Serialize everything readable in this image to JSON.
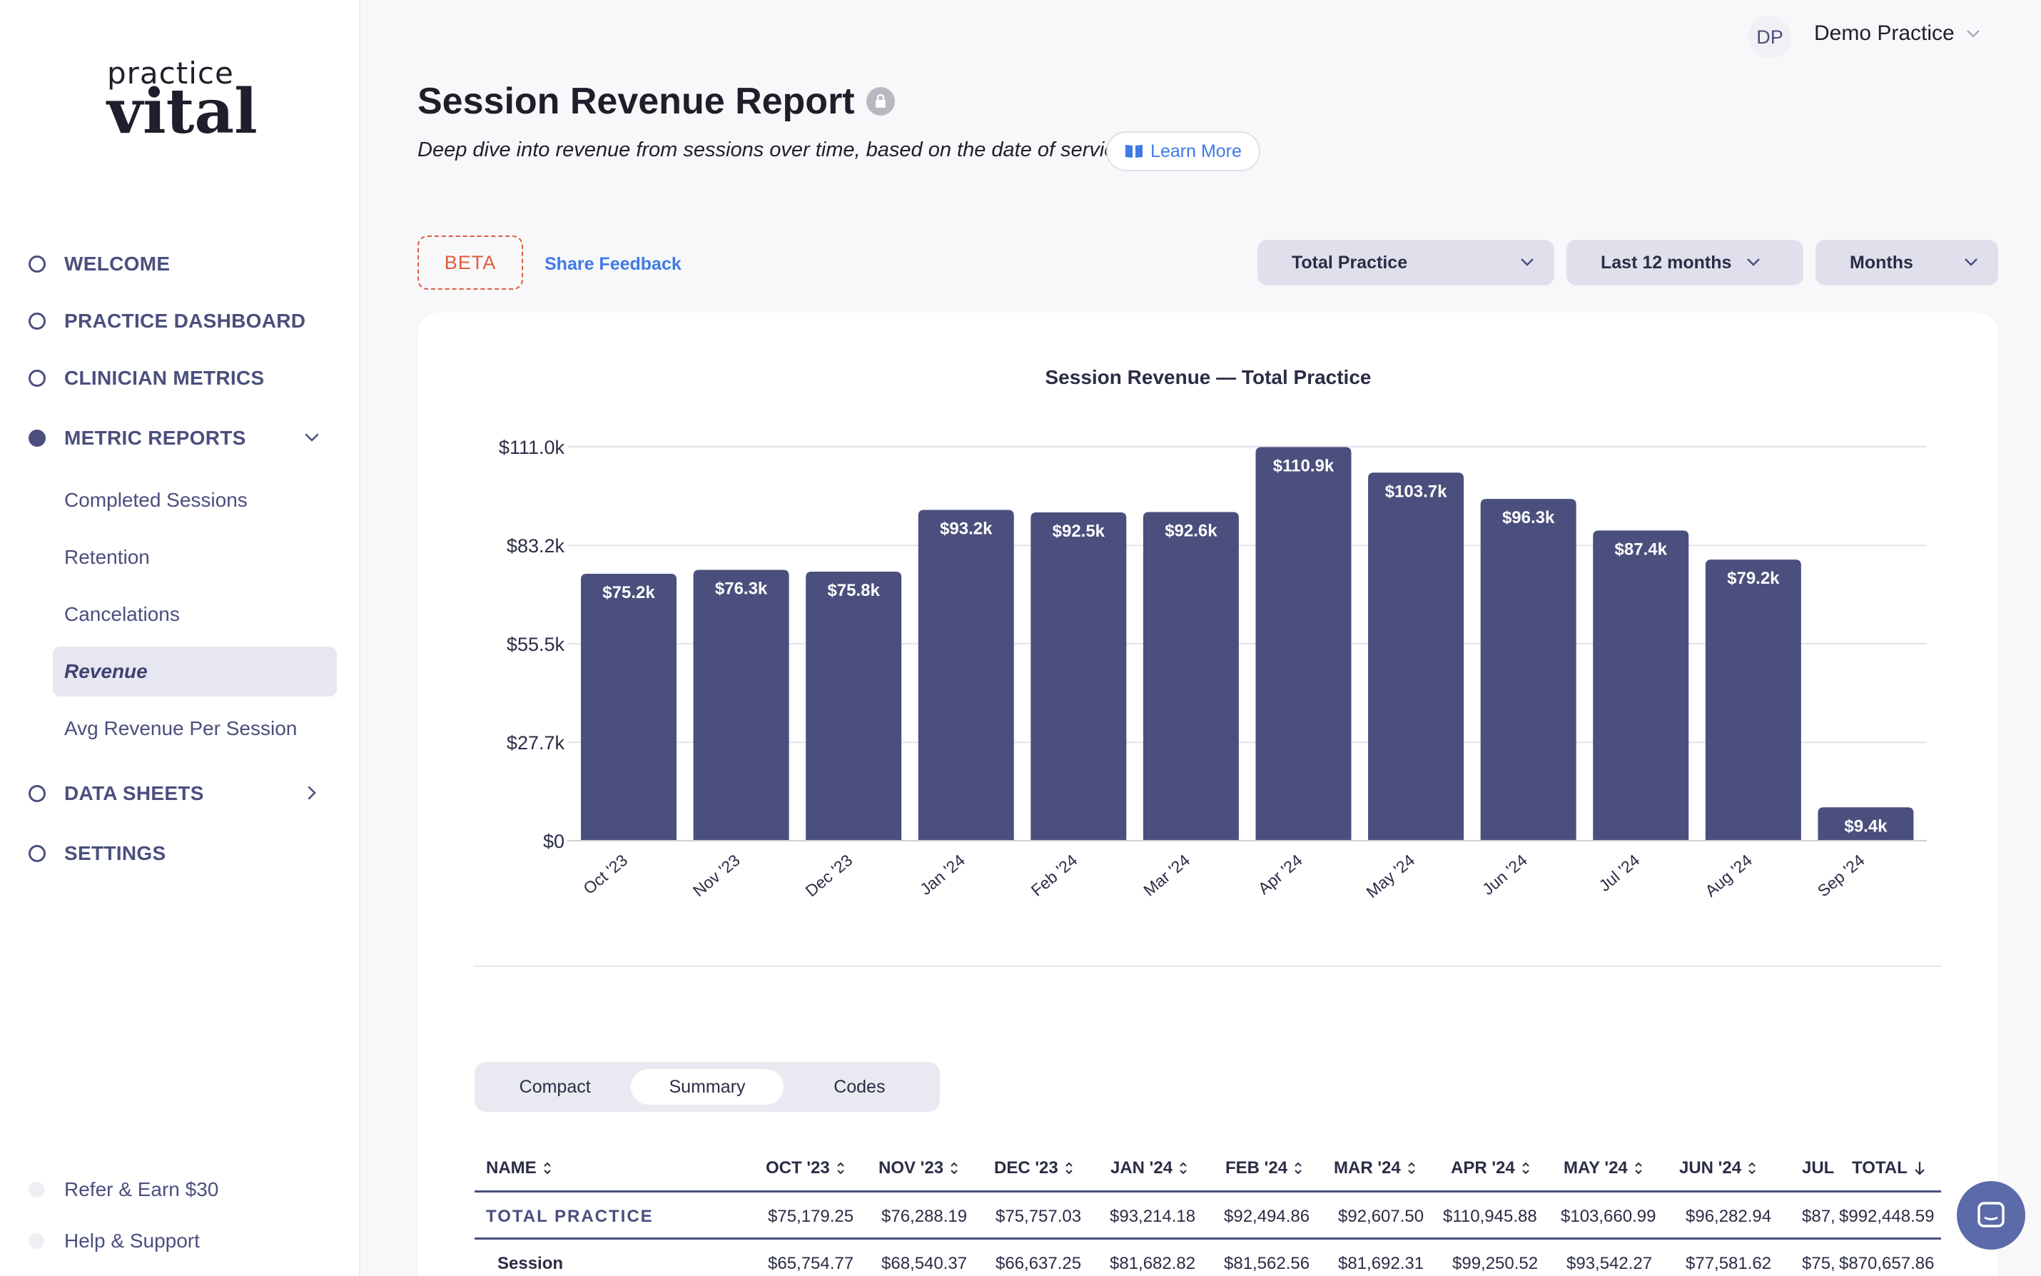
{
  "app": {
    "logo_top": "practice",
    "logo_main": "vital"
  },
  "sidebar": {
    "items": [
      {
        "label": "WELCOME",
        "active": false
      },
      {
        "label": "PRACTICE DASHBOARD",
        "active": false
      },
      {
        "label": "CLINICIAN METRICS",
        "active": false
      },
      {
        "label": "METRIC REPORTS",
        "active": true,
        "expanded": true
      },
      {
        "label": "DATA SHEETS",
        "active": false,
        "expandable": true
      },
      {
        "label": "SETTINGS",
        "active": false
      }
    ],
    "sub_items": [
      {
        "label": "Completed Sessions",
        "active": false
      },
      {
        "label": "Retention",
        "active": false
      },
      {
        "label": "Cancelations",
        "active": false
      },
      {
        "label": "Revenue",
        "active": true
      },
      {
        "label": "Avg Revenue Per Session",
        "active": false
      }
    ],
    "footer": [
      {
        "label": "Refer & Earn $30"
      },
      {
        "label": "Help & Support"
      }
    ]
  },
  "account": {
    "initials": "DP",
    "name": "Demo Practice"
  },
  "header": {
    "title": "Session Revenue Report",
    "subtitle": "Deep dive into revenue from sessions over time, based on the date of service.",
    "learn_more": "Learn More"
  },
  "toolbar": {
    "beta": "BETA",
    "feedback": "Share Feedback",
    "scope": "Total Practice",
    "range": "Last 12 months",
    "granularity": "Months"
  },
  "chart_data": {
    "type": "bar",
    "title": "Session Revenue — Total Practice",
    "categories": [
      "Oct '23",
      "Nov '23",
      "Dec '23",
      "Jan '24",
      "Feb '24",
      "Mar '24",
      "Apr '24",
      "May '24",
      "Jun '24",
      "Jul '24",
      "Aug '24",
      "Sep '24"
    ],
    "values": [
      75.2,
      76.3,
      75.8,
      93.2,
      92.5,
      92.6,
      110.9,
      103.7,
      96.3,
      87.4,
      79.2,
      9.4
    ],
    "labels": [
      "$75.2k",
      "$76.3k",
      "$75.8k",
      "$93.2k",
      "$92.5k",
      "$92.6k",
      "$110.9k",
      "$103.7k",
      "$96.3k",
      "$87.4k",
      "$79.2k",
      "$9.4k"
    ],
    "yticks": [
      0,
      27.7,
      55.5,
      83.2,
      111.0
    ],
    "ytick_labels": [
      "$0",
      "$27.7k",
      "$55.5k",
      "$83.2k",
      "$111.0k"
    ],
    "ylim": [
      0,
      111.0
    ],
    "bar_color": "#4a4f7d",
    "grid": true
  },
  "view_toggle": {
    "options": [
      "Compact",
      "Summary",
      "Codes"
    ],
    "selected": "Summary"
  },
  "table": {
    "columns": [
      "NAME",
      "OCT '23",
      "NOV '23",
      "DEC '23",
      "JAN '24",
      "FEB '24",
      "MAR '24",
      "APR '24",
      "MAY '24",
      "JUN '24",
      "JUL",
      "TOTAL"
    ],
    "rows": [
      {
        "name": "TOTAL PRACTICE",
        "cells": [
          "$75,179.25",
          "$76,288.19",
          "$75,757.03",
          "$93,214.18",
          "$92,494.86",
          "$92,607.50",
          "$110,945.88",
          "$103,660.99",
          "$96,282.94",
          "$87,",
          "$992,448.59"
        ]
      },
      {
        "name": "Session",
        "cells": [
          "$65,754.77",
          "$68,540.37",
          "$66,637.25",
          "$81,682.82",
          "$81,562.56",
          "$81,692.31",
          "$99,250.52",
          "$93,542.27",
          "$77,581.62",
          "$75,",
          "$870,657.86"
        ]
      }
    ]
  }
}
